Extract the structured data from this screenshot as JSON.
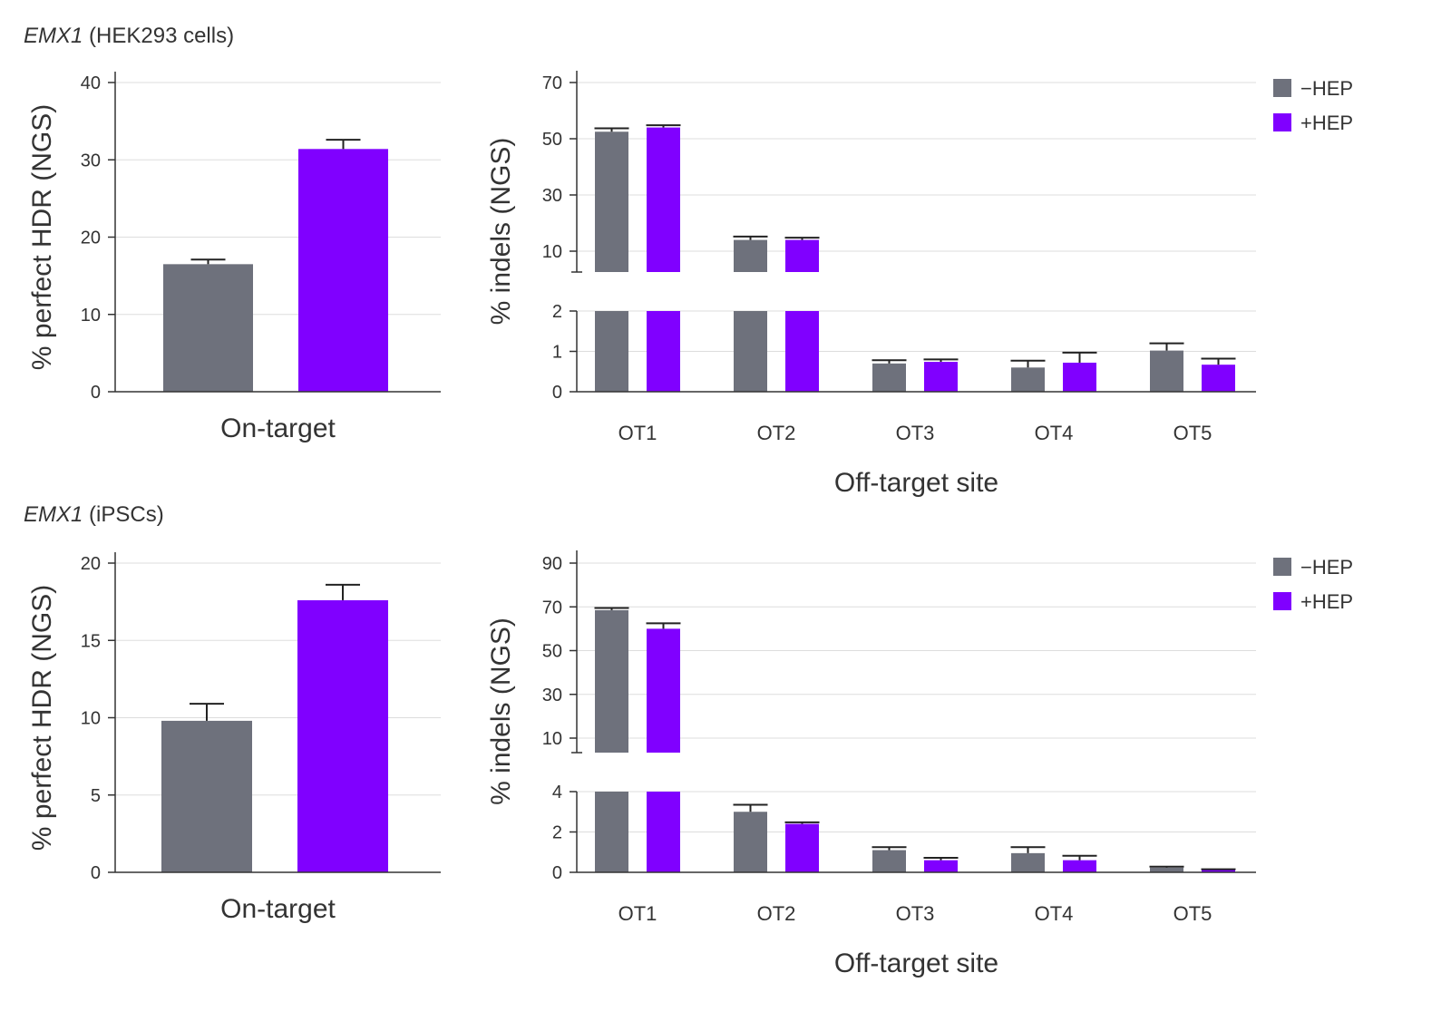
{
  "colors": {
    "minus_hep": "#6e717c",
    "plus_hep": "#8000ff",
    "axis": "#333333",
    "grid": "#dddddd"
  },
  "panels": [
    {
      "gene": "EMX1",
      "cells": " (HEK293 cells)"
    },
    {
      "gene": "EMX1",
      "cells": " (iPSCs)"
    }
  ],
  "chart_data": [
    {
      "type": "bar",
      "title": "EMX1 (HEK293 cells)",
      "xlabel": "On-target",
      "ylabel": "% perfect HDR (NGS)",
      "ylim": [
        0,
        40
      ],
      "yticks": [
        0,
        10,
        20,
        30,
        40
      ],
      "grid": true,
      "series": [
        {
          "name": "−HEP",
          "values": [
            16.5
          ],
          "error": [
            0.6
          ]
        },
        {
          "name": "+HEP",
          "values": [
            31.4
          ],
          "error": [
            1.2
          ]
        }
      ]
    },
    {
      "type": "bar",
      "title": "EMX1 (HEK293 cells)",
      "xlabel": "Off-target site",
      "ylabel": "% indels (NGS)",
      "categories": [
        "OT1",
        "OT2",
        "OT3",
        "OT4",
        "OT5"
      ],
      "broken_axis": true,
      "yticks_lower": [
        0,
        1,
        2
      ],
      "yticks_upper": [
        10,
        30,
        50,
        70
      ],
      "legend": "top-right",
      "grid": true,
      "series": [
        {
          "name": "−HEP",
          "values": [
            52.5,
            14,
            0.7,
            0.6,
            1.02
          ],
          "error": [
            1.2,
            1.2,
            0.08,
            0.17,
            0.18
          ]
        },
        {
          "name": "+HEP",
          "values": [
            54,
            14,
            0.74,
            0.72,
            0.67
          ],
          "error": [
            0.8,
            0.8,
            0.06,
            0.25,
            0.15
          ]
        }
      ]
    },
    {
      "type": "bar",
      "title": "EMX1 (iPSCs)",
      "xlabel": "On-target",
      "ylabel": "% perfect HDR (NGS)",
      "ylim": [
        0,
        20
      ],
      "yticks": [
        0,
        5,
        10,
        15,
        20
      ],
      "grid": true,
      "series": [
        {
          "name": "−HEP",
          "values": [
            9.8
          ],
          "error": [
            1.1
          ]
        },
        {
          "name": "+HEP",
          "values": [
            17.6
          ],
          "error": [
            1.0
          ]
        }
      ]
    },
    {
      "type": "bar",
      "title": "EMX1 (iPSCs)",
      "xlabel": "Off-target site",
      "ylabel": "% indels (NGS)",
      "categories": [
        "OT1",
        "OT2",
        "OT3",
        "OT4",
        "OT5"
      ],
      "broken_axis": true,
      "yticks_lower": [
        0,
        2,
        4
      ],
      "yticks_upper": [
        10,
        30,
        50,
        70,
        90
      ],
      "legend": "top-right",
      "grid": true,
      "series": [
        {
          "name": "−HEP",
          "values": [
            68.5,
            3.0,
            1.1,
            0.95,
            0.23
          ],
          "error": [
            1.0,
            0.35,
            0.15,
            0.3,
            0.05
          ]
        },
        {
          "name": "+HEP",
          "values": [
            60,
            2.4,
            0.6,
            0.6,
            0.12
          ],
          "error": [
            2.5,
            0.08,
            0.12,
            0.22,
            0.03
          ]
        }
      ]
    }
  ]
}
